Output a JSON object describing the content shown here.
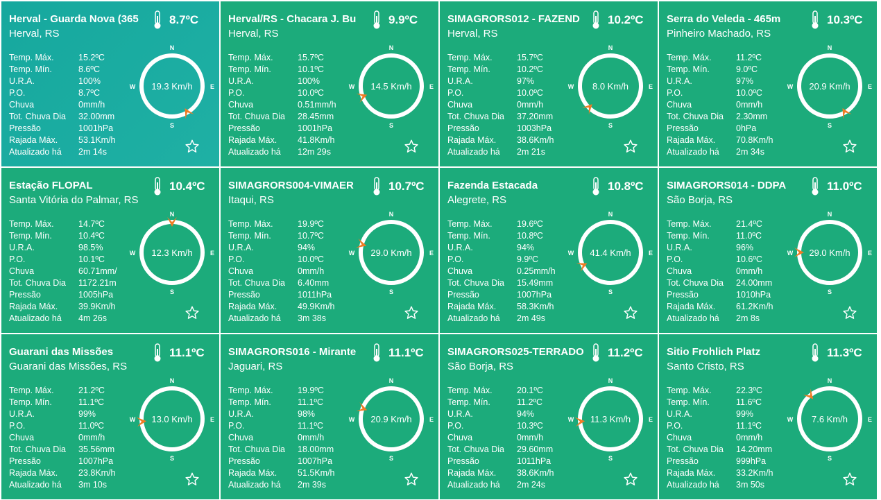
{
  "labels": {
    "temp_max": "Temp. Máx.",
    "temp_min": "Temp. Mín.",
    "ura": "U.R.A.",
    "po": "P.O.",
    "chuva": "Chuva",
    "tot_chuva": "Tot. Chuva Dia",
    "pressao": "Pressão",
    "rajada": "Rajada Máx.",
    "atualizado": "Atualizado há"
  },
  "compass_letters": {
    "n": "N",
    "s": "S",
    "e": "E",
    "w": "W"
  },
  "icons": {
    "thermometer": "thermometer-icon",
    "star": "star-icon",
    "wind_arrow": "wind-direction-arrow-icon"
  },
  "colors": {
    "card_bg": "#1cab7b",
    "first_card_bg": "#16a89e",
    "arrow": "#f07c25",
    "text": "#ffffff"
  },
  "stations": [
    {
      "name": "Herval - Guarda Nova (365",
      "city": "Herval, RS",
      "temp": "8.7ºC",
      "wind": "19.3 Km/h",
      "wind_dir_deg": 150,
      "stats": {
        "temp_max": "15.2ºC",
        "temp_min": "8.6ºC",
        "ura": "100%",
        "po": "8.7ºC",
        "chuva": "0mm/h",
        "tot_chuva": "32.00mm",
        "pressao": "1001hPa",
        "rajada": "53.1Km/h",
        "atualizado": "2m 14s"
      }
    },
    {
      "name": "Herval/RS - Chacara J. Bu",
      "city": "Herval, RS",
      "temp": "9.9ºC",
      "wind": "14.5 Km/h",
      "wind_dir_deg": 250,
      "stats": {
        "temp_max": "15.7ºC",
        "temp_min": "10.1ºC",
        "ura": "100%",
        "po": "10.0ºC",
        "chuva": "0.51mm/h",
        "tot_chuva": "28.45mm",
        "pressao": "1001hPa",
        "rajada": "41.8Km/h",
        "atualizado": "12m 29s"
      }
    },
    {
      "name": "SIMAGRORS012 - FAZEND",
      "city": "Herval, RS",
      "temp": "10.2ºC",
      "wind": "8.0 Km/h",
      "wind_dir_deg": 225,
      "stats": {
        "temp_max": "15.7ºC",
        "temp_min": "10.2ºC",
        "ura": "97%",
        "po": "10.0ºC",
        "chuva": "0mm/h",
        "tot_chuva": "37.20mm",
        "pressao": "1003hPa",
        "rajada": "38.6Km/h",
        "atualizado": "2m 21s"
      }
    },
    {
      "name": "Serra do Veleda - 465m",
      "city": "Pinheiro Machado, RS",
      "temp": "10.3ºC",
      "wind": "20.9 Km/h",
      "wind_dir_deg": 150,
      "stats": {
        "temp_max": "11.2ºC",
        "temp_min": "9.0ºC",
        "ura": "97%",
        "po": "10.0ºC",
        "chuva": "0mm/h",
        "tot_chuva": "2.30mm",
        "pressao": "0hPa",
        "rajada": "70.8Km/h",
        "atualizado": "2m 34s"
      }
    },
    {
      "name": "Estação FLOPAL",
      "city": "Santa Vitória do Palmar, RS",
      "temp": "10.4ºC",
      "wind": "12.3 Km/h",
      "wind_dir_deg": 0,
      "stats": {
        "temp_max": "14.7ºC",
        "temp_min": "10.4ºC",
        "ura": "98.5%",
        "po": "10.1ºC",
        "chuva": "60.71mm/",
        "tot_chuva": "1172.21m",
        "pressao": "1005hPa",
        "rajada": "39.9Km/h",
        "atualizado": "4m 26s"
      }
    },
    {
      "name": "SIMAGRORS004-VIMAER",
      "city": "Itaqui, RS",
      "temp": "10.7ºC",
      "wind": "29.0 Km/h",
      "wind_dir_deg": 285,
      "stats": {
        "temp_max": "19.9ºC",
        "temp_min": "10.7ºC",
        "ura": "94%",
        "po": "10.0ºC",
        "chuva": "0mm/h",
        "tot_chuva": "6.40mm",
        "pressao": "1011hPa",
        "rajada": "49.9Km/h",
        "atualizado": "3m 38s"
      }
    },
    {
      "name": "Fazenda Estacada",
      "city": "Alegrete, RS",
      "temp": "10.8ºC",
      "wind": "41.4 Km/h",
      "wind_dir_deg": 245,
      "stats": {
        "temp_max": "19.6ºC",
        "temp_min": "10.8ºC",
        "ura": "94%",
        "po": "9.9ºC",
        "chuva": "0.25mm/h",
        "tot_chuva": "15.49mm",
        "pressao": "1007hPa",
        "rajada": "58.3Km/h",
        "atualizado": "2m 49s"
      }
    },
    {
      "name": "SIMAGRORS014 - DDPA",
      "city": "São Borja, RS",
      "temp": "11.0ºC",
      "wind": "29.0 Km/h",
      "wind_dir_deg": 270,
      "stats": {
        "temp_max": "21.4ºC",
        "temp_min": "11.0ºC",
        "ura": "96%",
        "po": "10.6ºC",
        "chuva": "0mm/h",
        "tot_chuva": "24.00mm",
        "pressao": "1010hPa",
        "rajada": "61.2Km/h",
        "atualizado": "2m 8s"
      }
    },
    {
      "name": "Guarani das Missões",
      "city": "Guarani das Missões, RS",
      "temp": "11.1ºC",
      "wind": "13.0 Km/h",
      "wind_dir_deg": 265,
      "stats": {
        "temp_max": "21.2ºC",
        "temp_min": "11.1ºC",
        "ura": "99%",
        "po": "11.0ºC",
        "chuva": "0mm/h",
        "tot_chuva": "35.56mm",
        "pressao": "1007hPa",
        "rajada": "23.8Km/h",
        "atualizado": "3m 10s"
      }
    },
    {
      "name": "SIMAGRORS016 - Mirante",
      "city": "Jaguari, RS",
      "temp": "11.1ºC",
      "wind": "20.9 Km/h",
      "wind_dir_deg": 290,
      "stats": {
        "temp_max": "19.9ºC",
        "temp_min": "11.1ºC",
        "ura": "98%",
        "po": "11.1ºC",
        "chuva": "0mm/h",
        "tot_chuva": "18.00mm",
        "pressao": "1007hPa",
        "rajada": "51.5Km/h",
        "atualizado": "2m 39s"
      }
    },
    {
      "name": "SIMAGRORS025-TERRADO",
      "city": "São Borja, RS",
      "temp": "11.2ºC",
      "wind": "11.3 Km/h",
      "wind_dir_deg": 265,
      "stats": {
        "temp_max": "20.1ºC",
        "temp_min": "11.2ºC",
        "ura": "94%",
        "po": "10.3ºC",
        "chuva": "0mm/h",
        "tot_chuva": "29.60mm",
        "pressao": "1011hPa",
        "rajada": "38.6Km/h",
        "atualizado": "2m 24s"
      }
    },
    {
      "name": "Sitio Frohlich Platz",
      "city": "Santo Cristo, RS",
      "temp": "11.3ºC",
      "wind": "7.6 Km/h",
      "wind_dir_deg": 320,
      "stats": {
        "temp_max": "22.3ºC",
        "temp_min": "11.6ºC",
        "ura": "99%",
        "po": "11.1ºC",
        "chuva": "0mm/h",
        "tot_chuva": "14.20mm",
        "pressao": "999hPa",
        "rajada": "33.2Km/h",
        "atualizado": "3m 50s"
      }
    }
  ]
}
